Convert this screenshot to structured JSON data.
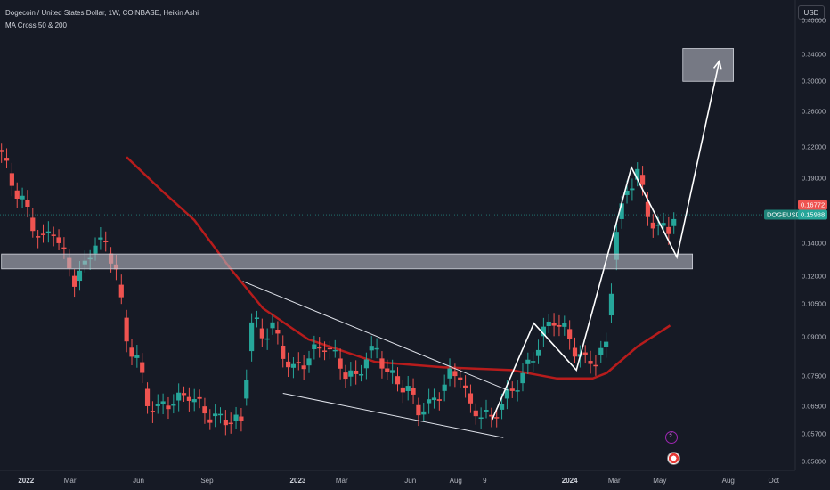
{
  "header": {
    "title": "Dogecoin / United States Dollar, 1W, COINBASE, Heikin Ashi",
    "indicator": "MA Cross 50 & 200"
  },
  "currency_button": "USD",
  "price_tags": {
    "symbol": "DOGEUSD",
    "close": "0.15988",
    "open": "0.16772"
  },
  "icons": [
    "lightning-icon",
    "flag-icon"
  ],
  "colors": {
    "background": "#161a25",
    "up_candle": "#26a69a",
    "down_candle": "#ef5350",
    "ma_line": "#b71c1c",
    "drawings": "#ffffff",
    "zone_fill": "#b2b5be"
  },
  "chart_data": {
    "type": "candlestick",
    "subtype": "heikin-ashi",
    "symbol": "DOGEUSD",
    "interval": "1W",
    "y_axis": {
      "scale": "log",
      "side": "right",
      "range": [
        0.048,
        0.44
      ],
      "ticks": [
        "0.40000",
        "0.34000",
        "0.30000",
        "0.26000",
        "0.22000",
        "0.19000",
        "0.16000",
        "0.14000",
        "0.12000",
        "0.10500",
        "0.09000",
        "0.07500",
        "0.06500",
        "0.05700",
        "0.05000"
      ]
    },
    "x_axis": {
      "range": [
        "2021-11-27",
        "2024-10-30"
      ],
      "ticks": [
        {
          "label": "2022",
          "date": "2022-01-01",
          "bold": true
        },
        {
          "label": "Mar",
          "date": "2022-03-01"
        },
        {
          "label": "Jun",
          "date": "2022-06-01"
        },
        {
          "label": "Sep",
          "date": "2022-09-01"
        },
        {
          "label": "2023",
          "date": "2023-01-01",
          "bold": true
        },
        {
          "label": "Mar",
          "date": "2023-03-01"
        },
        {
          "label": "Jun",
          "date": "2023-06-01"
        },
        {
          "label": "Aug",
          "date": "2023-08-01"
        },
        {
          "label": "9",
          "date": "2023-09-09"
        },
        {
          "label": "2024",
          "date": "2024-01-01",
          "bold": true
        },
        {
          "label": "Mar",
          "date": "2024-03-01"
        },
        {
          "label": "May",
          "date": "2024-05-01"
        },
        {
          "label": "Aug",
          "date": "2024-08-01"
        },
        {
          "label": "Oct",
          "date": "2024-10-01"
        }
      ]
    },
    "closes": [
      {
        "date": "2021-11-29",
        "close": 0.215
      },
      {
        "date": "2021-12-13",
        "close": 0.185
      },
      {
        "date": "2021-12-27",
        "close": 0.172
      },
      {
        "date": "2022-01-10",
        "close": 0.152
      },
      {
        "date": "2022-01-24",
        "close": 0.142
      },
      {
        "date": "2022-02-07",
        "close": 0.15
      },
      {
        "date": "2022-02-21",
        "close": 0.132
      },
      {
        "date": "2022-03-07",
        "close": 0.118
      },
      {
        "date": "2022-03-21",
        "close": 0.125
      },
      {
        "date": "2022-04-04",
        "close": 0.142
      },
      {
        "date": "2022-04-18",
        "close": 0.138
      },
      {
        "date": "2022-05-02",
        "close": 0.125
      },
      {
        "date": "2022-05-16",
        "close": 0.088
      },
      {
        "date": "2022-05-30",
        "close": 0.082
      },
      {
        "date": "2022-06-13",
        "close": 0.066
      },
      {
        "date": "2022-06-27",
        "close": 0.064
      },
      {
        "date": "2022-07-11",
        "close": 0.066
      },
      {
        "date": "2022-07-25",
        "close": 0.067
      },
      {
        "date": "2022-08-08",
        "close": 0.069
      },
      {
        "date": "2022-08-22",
        "close": 0.065
      },
      {
        "date": "2022-09-05",
        "close": 0.062
      },
      {
        "date": "2022-09-19",
        "close": 0.061
      },
      {
        "date": "2022-10-03",
        "close": 0.061
      },
      {
        "date": "2022-10-17",
        "close": 0.06
      },
      {
        "date": "2022-11-01",
        "close": 0.1
      },
      {
        "date": "2022-11-14",
        "close": 0.09
      },
      {
        "date": "2022-11-28",
        "close": 0.095
      },
      {
        "date": "2022-12-12",
        "close": 0.083
      },
      {
        "date": "2022-12-26",
        "close": 0.077
      },
      {
        "date": "2023-01-09",
        "close": 0.08
      },
      {
        "date": "2023-01-23",
        "close": 0.084
      },
      {
        "date": "2023-02-06",
        "close": 0.087
      },
      {
        "date": "2023-02-20",
        "close": 0.082
      },
      {
        "date": "2023-03-06",
        "close": 0.076
      },
      {
        "date": "2023-03-20",
        "close": 0.074
      },
      {
        "date": "2023-04-03",
        "close": 0.082
      },
      {
        "date": "2023-04-17",
        "close": 0.085
      },
      {
        "date": "2023-05-01",
        "close": 0.076
      },
      {
        "date": "2023-05-15",
        "close": 0.073
      },
      {
        "date": "2023-05-29",
        "close": 0.07
      },
      {
        "date": "2023-06-12",
        "close": 0.064
      },
      {
        "date": "2023-06-26",
        "close": 0.065
      },
      {
        "date": "2023-07-10",
        "close": 0.069
      },
      {
        "date": "2023-07-24",
        "close": 0.075
      },
      {
        "date": "2023-08-07",
        "close": 0.076
      },
      {
        "date": "2023-08-21",
        "close": 0.064
      },
      {
        "date": "2023-09-04",
        "close": 0.063
      },
      {
        "date": "2023-09-18",
        "close": 0.061
      },
      {
        "date": "2023-10-02",
        "close": 0.066
      },
      {
        "date": "2023-10-16",
        "close": 0.07
      },
      {
        "date": "2023-10-30",
        "close": 0.075
      },
      {
        "date": "2023-11-13",
        "close": 0.082
      },
      {
        "date": "2023-11-27",
        "close": 0.092
      },
      {
        "date": "2023-12-11",
        "close": 0.098
      },
      {
        "date": "2023-12-25",
        "close": 0.093
      },
      {
        "date": "2024-01-08",
        "close": 0.085
      },
      {
        "date": "2024-01-22",
        "close": 0.08
      },
      {
        "date": "2024-02-05",
        "close": 0.081
      },
      {
        "date": "2024-02-19",
        "close": 0.086
      },
      {
        "date": "2024-03-04",
        "close": 0.15
      },
      {
        "date": "2024-03-18",
        "close": 0.178
      },
      {
        "date": "2024-04-01",
        "close": 0.198
      },
      {
        "date": "2024-04-15",
        "close": 0.16
      },
      {
        "date": "2024-04-29",
        "close": 0.15
      },
      {
        "date": "2024-05-13",
        "close": 0.15
      },
      {
        "date": "2024-05-20",
        "close": 0.16
      }
    ],
    "moving_average": {
      "points": [
        {
          "date": "2022-05-16",
          "value": 0.21
        },
        {
          "date": "2022-07-01",
          "value": 0.18
        },
        {
          "date": "2022-08-15",
          "value": 0.156
        },
        {
          "date": "2022-10-01",
          "value": 0.125
        },
        {
          "date": "2022-11-15",
          "value": 0.103
        },
        {
          "date": "2023-01-15",
          "value": 0.089
        },
        {
          "date": "2023-04-15",
          "value": 0.08
        },
        {
          "date": "2023-07-15",
          "value": 0.078
        },
        {
          "date": "2023-10-15",
          "value": 0.077
        },
        {
          "date": "2023-12-15",
          "value": 0.074
        },
        {
          "date": "2024-02-01",
          "value": 0.074
        },
        {
          "date": "2024-02-20",
          "value": 0.076
        },
        {
          "date": "2024-04-01",
          "value": 0.086
        },
        {
          "date": "2024-05-15",
          "value": 0.095
        }
      ]
    },
    "annotations": {
      "support_zone": {
        "date_from": "2021-11-29",
        "date_to": "2024-06-14",
        "low": 0.124,
        "high": 0.133
      },
      "target_zone": {
        "date_from": "2024-06-01",
        "date_to": "2024-08-08",
        "low": 0.3,
        "high": 0.35
      },
      "wedge_upper": [
        {
          "date": "2022-10-19",
          "price": 0.117
        },
        {
          "date": "2023-10-10",
          "price": 0.07
        }
      ],
      "wedge_lower": [
        {
          "date": "2022-12-12",
          "price": 0.069
        },
        {
          "date": "2023-10-04",
          "price": 0.056
        }
      ],
      "projection_path": [
        {
          "date": "2023-09-19",
          "price": 0.061
        },
        {
          "date": "2023-11-14",
          "price": 0.096
        },
        {
          "date": "2024-01-10",
          "price": 0.077
        },
        {
          "date": "2024-03-24",
          "price": 0.2
        },
        {
          "date": "2024-05-24",
          "price": 0.131
        },
        {
          "date": "2024-07-20",
          "price": 0.33
        }
      ]
    },
    "last_price_line": 0.16,
    "grid": false,
    "legend": "none"
  }
}
